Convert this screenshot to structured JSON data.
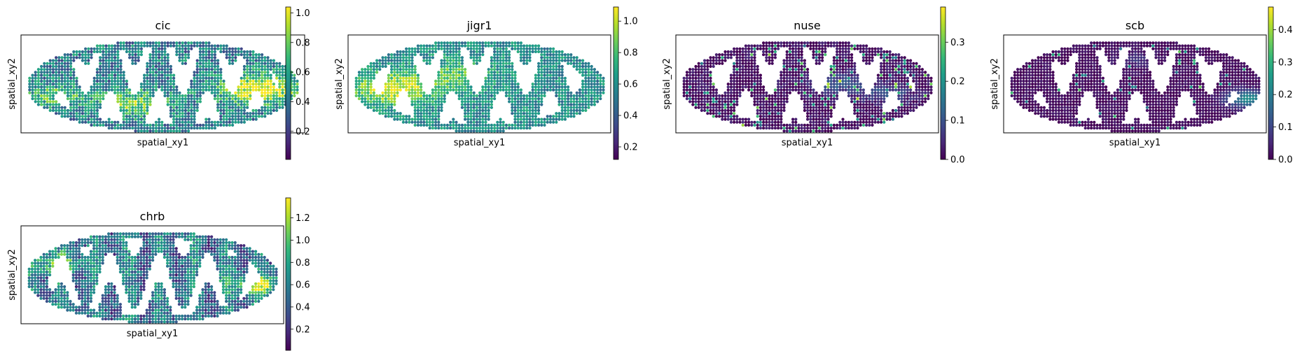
{
  "colormap": "viridis",
  "colors": {
    "viridis": [
      "#440154",
      "#482878",
      "#3e4989",
      "#31688e",
      "#26828e",
      "#1f9e89",
      "#35b779",
      "#6ece58",
      "#b5de2b",
      "#fde725"
    ],
    "frame": "#000000",
    "background": "#ffffff"
  },
  "chart_data": [
    {
      "type": "scatter",
      "title": "cic",
      "xlabel": "spatial_xy1",
      "ylabel": "spatial_xy2",
      "colorbar": {
        "range": [
          0.01,
          1.04
        ],
        "ticks": [
          0.2,
          0.4,
          0.6,
          0.8,
          1.0
        ],
        "tick_labels": [
          "0.2",
          "0.4",
          "0.6",
          "0.8",
          "1.0"
        ]
      },
      "pattern": {
        "base": 0.42,
        "amp": 0.22,
        "hotspots": [
          [
            0.84,
            0.55,
            0.62,
            0.1
          ],
          [
            0.12,
            0.62,
            0.3,
            0.08
          ],
          [
            0.4,
            0.7,
            0.38,
            0.09
          ]
        ]
      }
    },
    {
      "type": "scatter",
      "title": "jigr1",
      "xlabel": "spatial_xy1",
      "ylabel": "spatial_xy2",
      "colorbar": {
        "range": [
          0.12,
          1.09
        ],
        "ticks": [
          0.2,
          0.4,
          0.6,
          0.8,
          1.0
        ],
        "tick_labels": [
          "0.2",
          "0.4",
          "0.6",
          "0.8",
          "1.0"
        ]
      },
      "pattern": {
        "base": 0.48,
        "amp": 0.16,
        "hotspots": [
          [
            0.17,
            0.55,
            0.5,
            0.11
          ],
          [
            0.42,
            0.4,
            0.25,
            0.1
          ]
        ]
      }
    },
    {
      "type": "scatter",
      "title": "nuse",
      "xlabel": "spatial_xy1",
      "ylabel": "spatial_xy2",
      "colorbar": {
        "range": [
          0.0,
          0.39
        ],
        "ticks": [
          0.0,
          0.1,
          0.2,
          0.3
        ],
        "tick_labels": [
          "0.0",
          "0.1",
          "0.2",
          "0.3"
        ]
      },
      "pattern": {
        "base": 0.04,
        "amp": 0.08,
        "sparse": 0.08,
        "hotspots": [
          [
            0.62,
            0.5,
            0.22,
            0.08
          ],
          [
            0.8,
            0.6,
            0.2,
            0.07
          ]
        ]
      }
    },
    {
      "type": "scatter",
      "title": "scb",
      "xlabel": "spatial_xy1",
      "ylabel": "spatial_xy2",
      "colorbar": {
        "range": [
          0.0,
          0.47
        ],
        "ticks": [
          0.0,
          0.1,
          0.2,
          0.3,
          0.4
        ],
        "tick_labels": [
          "0.0",
          "0.1",
          "0.2",
          "0.3",
          "0.4"
        ]
      },
      "pattern": {
        "base": 0.03,
        "amp": 0.05,
        "sparse": 0.03,
        "hotspots": [
          [
            0.93,
            0.65,
            0.45,
            0.06
          ],
          [
            0.5,
            0.25,
            0.12,
            0.06
          ]
        ]
      }
    },
    {
      "type": "scatter",
      "title": "chrb",
      "xlabel": "spatial_xy1",
      "ylabel": "spatial_xy2",
      "colorbar": {
        "range": [
          0.01,
          1.38
        ],
        "ticks": [
          0.2,
          0.4,
          0.6,
          0.8,
          1.0,
          1.2
        ],
        "tick_labels": [
          "0.2",
          "0.4",
          "0.6",
          "0.8",
          "1.0",
          "1.2"
        ]
      },
      "pattern": {
        "base": 0.38,
        "amp": 0.2,
        "stripes": 8,
        "hotspots": [
          [
            0.14,
            0.4,
            0.4,
            0.07
          ],
          [
            0.9,
            0.6,
            0.55,
            0.07
          ]
        ]
      }
    }
  ]
}
